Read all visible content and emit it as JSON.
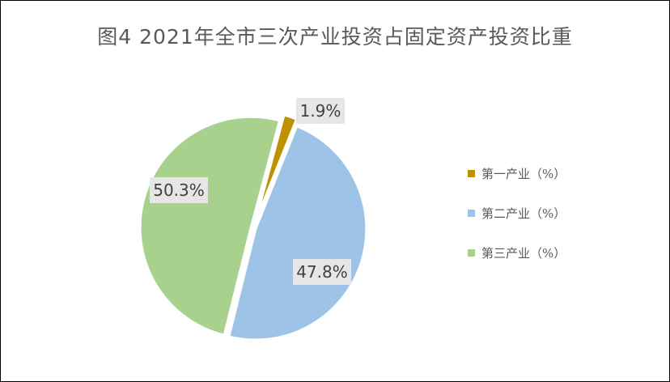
{
  "chart_data": {
    "type": "pie",
    "title": "图4  2021年全市三次产业投资占固定资产投资比重",
    "series": [
      {
        "name": "第一产业（%）",
        "value": 1.9,
        "label": "1.9%",
        "color": "#BF9000"
      },
      {
        "name": "第二产业（%）",
        "value": 47.8,
        "label": "47.8%",
        "color": "#9DC3E6"
      },
      {
        "name": "第三产业（%）",
        "value": 50.3,
        "label": "50.3%",
        "color": "#A9D18E"
      }
    ],
    "legend_position": "right",
    "start_angle_deg": 15
  }
}
